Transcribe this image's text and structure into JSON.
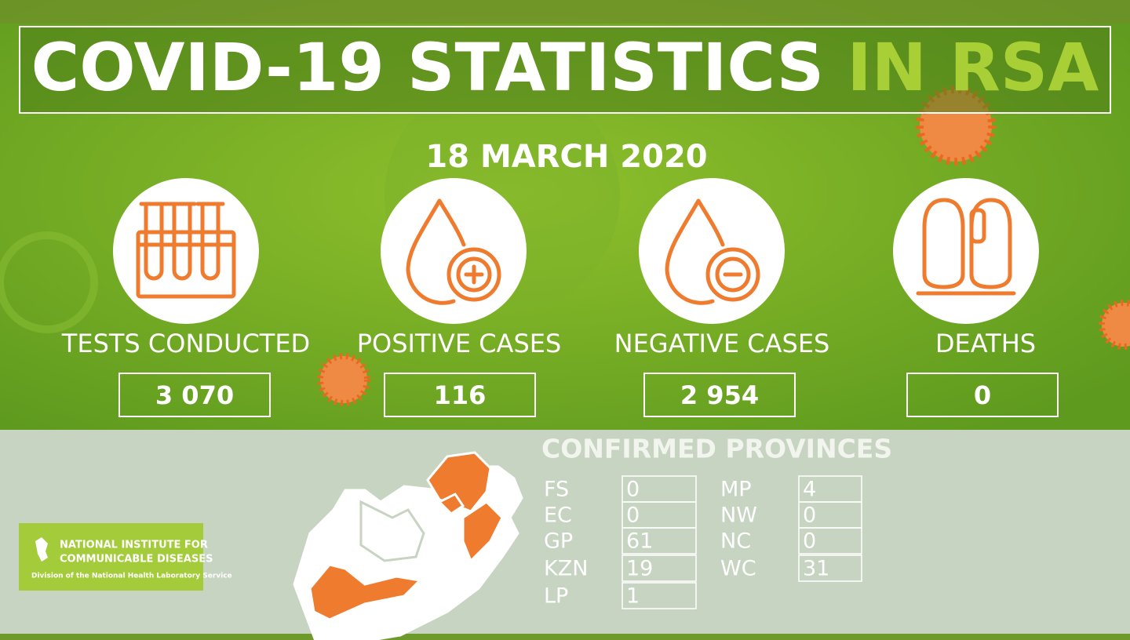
{
  "header": {
    "title": "COVID-19 STATISTICS",
    "title_highlight": "IN RSA",
    "date": "18 MARCH 2020"
  },
  "stats": [
    {
      "label": "TESTS CONDUCTED",
      "value": "3 070"
    },
    {
      "label": "POSITIVE CASES",
      "value": "116"
    },
    {
      "label": "NEGATIVE CASES",
      "value": "2 954"
    },
    {
      "label": "DEATHS",
      "value": "0"
    }
  ],
  "provinces": {
    "title": "CONFIRMED PROVINCES",
    "left": [
      {
        "code": "FS",
        "count": 0
      },
      {
        "code": "EC",
        "count": 0
      },
      {
        "code": "GP",
        "count": 61
      },
      {
        "code": "KZN",
        "count": 19
      },
      {
        "code": "LP",
        "count": 1
      }
    ],
    "right": [
      {
        "code": "MP",
        "count": 4
      },
      {
        "code": "NW",
        "count": 0
      },
      {
        "code": "NC",
        "count": 0
      },
      {
        "code": "WC",
        "count": 31
      }
    ]
  },
  "logo": {
    "line1": "NATIONAL INSTITUTE FOR",
    "line2": "COMMUNICABLE DISEASES",
    "line3": "Division of the National Health Laboratory Service"
  }
}
